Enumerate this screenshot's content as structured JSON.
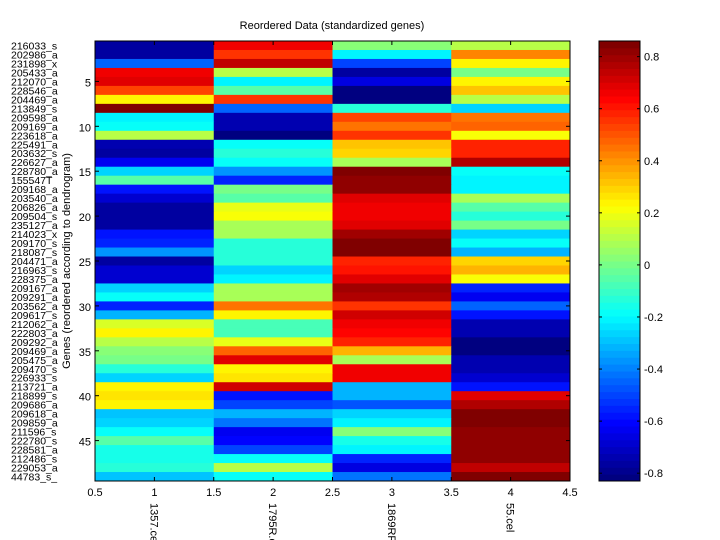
{
  "chart_data": {
    "type": "heatmap",
    "title": "Reordered Data (standardized genes)",
    "ylabel": "Genes (reordered according to dendrogram)",
    "xlabel": "",
    "colormap": "jet",
    "clim": [
      -0.83,
      0.86
    ],
    "xlim": [
      0.5,
      4.5
    ],
    "x_ticks": [
      "0.5",
      "1",
      "1.5",
      "2",
      "2.5",
      "3",
      "3.5",
      "4",
      "4.5"
    ],
    "y_ticks": [
      "5",
      "10",
      "15",
      "20",
      "25",
      "30",
      "35",
      "40",
      "45"
    ],
    "colorbar_ticks": [
      "0.8",
      "0.6",
      "0.4",
      "0.2",
      "0",
      "-0.2",
      "-0.4",
      "-0.6",
      "-0.8"
    ],
    "columns": [
      "1357.cel",
      "1795R.c",
      "1869RR",
      "55.cel"
    ],
    "rows": [
      "216033_s",
      "202986_a",
      "231898_x",
      "205433_a",
      "212070_a",
      "228546_a",
      "204469_a",
      "213849_s",
      "209598_a",
      "209169_a",
      "223618_a",
      "225491_a",
      "203632_s",
      "226627_a",
      "228780_a",
      "155547T",
      "209168_a",
      "203540_a",
      "206826_a",
      "209504_s",
      "235127_a",
      "214023_x",
      "209170_s",
      "218087_s",
      "204471_a",
      "216963_s",
      "228375_a",
      "209167_a",
      "209291_a",
      "203562_a",
      "209617_s",
      "212062_a",
      "222803_a",
      "209292_a",
      "209469_a",
      "205475_a",
      "209470_s",
      "226933_s",
      "213721_a",
      "218899_s",
      "209686_a",
      "209618_a",
      "209859_a",
      "211596_s",
      "222780_s",
      "228581_a",
      "212486_s",
      "229053_a",
      "44783_s_"
    ],
    "values": [
      [
        -0.76,
        0.65,
        0.02,
        0.12
      ],
      [
        -0.76,
        0.56,
        -0.2,
        0.42
      ],
      [
        -0.44,
        0.74,
        -0.49,
        0.23
      ],
      [
        0.65,
        0.12,
        -0.76,
        0.0
      ],
      [
        0.69,
        -0.22,
        -0.66,
        0.25
      ],
      [
        0.52,
        -0.04,
        -0.83,
        0.32
      ],
      [
        0.23,
        0.56,
        -0.83,
        0.1
      ],
      [
        0.86,
        -0.44,
        -0.12,
        -0.26
      ],
      [
        -0.22,
        -0.73,
        0.52,
        0.44
      ],
      [
        -0.19,
        -0.73,
        0.44,
        0.49
      ],
      [
        0.12,
        -0.83,
        0.56,
        0.2
      ],
      [
        -0.75,
        -0.19,
        0.32,
        0.57
      ],
      [
        -0.76,
        -0.12,
        0.3,
        0.59
      ],
      [
        -0.64,
        -0.19,
        0.07,
        0.76
      ],
      [
        -0.27,
        -0.37,
        0.86,
        -0.19
      ],
      [
        -0.04,
        -0.56,
        0.81,
        -0.2
      ],
      [
        -0.59,
        0.0,
        0.81,
        -0.2
      ],
      [
        -0.69,
        -0.04,
        0.69,
        0.07
      ],
      [
        -0.76,
        0.18,
        0.65,
        -0.04
      ],
      [
        -0.76,
        0.2,
        0.65,
        -0.12
      ],
      [
        -0.76,
        0.07,
        0.69,
        0.0
      ],
      [
        -0.58,
        0.07,
        0.79,
        -0.26
      ],
      [
        -0.56,
        -0.12,
        0.86,
        -0.19
      ],
      [
        -0.37,
        -0.12,
        0.86,
        -0.32
      ],
      [
        -0.76,
        -0.12,
        0.59,
        0.3
      ],
      [
        -0.68,
        -0.27,
        0.62,
        0.35
      ],
      [
        -0.68,
        -0.2,
        0.69,
        0.2
      ],
      [
        -0.27,
        0.07,
        0.79,
        -0.56
      ],
      [
        -0.19,
        0.07,
        0.76,
        -0.64
      ],
      [
        -0.56,
        0.45,
        0.56,
        -0.44
      ],
      [
        -0.32,
        0.23,
        0.71,
        -0.59
      ],
      [
        0.15,
        -0.09,
        0.65,
        -0.75
      ],
      [
        0.25,
        -0.09,
        0.64,
        -0.75
      ],
      [
        0.1,
        0.18,
        0.57,
        -0.83
      ],
      [
        0.02,
        0.49,
        0.35,
        -0.83
      ],
      [
        0.0,
        0.69,
        0.07,
        -0.75
      ],
      [
        -0.12,
        0.23,
        0.65,
        -0.75
      ],
      [
        -0.26,
        0.27,
        0.65,
        -0.69
      ],
      [
        0.23,
        0.71,
        -0.32,
        -0.59
      ],
      [
        0.27,
        -0.59,
        -0.32,
        0.69
      ],
      [
        0.23,
        -0.49,
        -0.48,
        0.76
      ],
      [
        -0.29,
        -0.32,
        -0.26,
        0.86
      ],
      [
        -0.26,
        -0.41,
        -0.2,
        0.86
      ],
      [
        -0.19,
        -0.62,
        0.03,
        0.81
      ],
      [
        -0.04,
        -0.61,
        -0.15,
        0.81
      ],
      [
        -0.15,
        -0.49,
        -0.22,
        0.83
      ],
      [
        -0.15,
        -0.19,
        -0.56,
        0.83
      ],
      [
        -0.12,
        0.1,
        -0.66,
        0.74
      ],
      [
        -0.29,
        -0.19,
        -0.41,
        0.86
      ]
    ],
    "colorbar": true,
    "grid": false
  }
}
